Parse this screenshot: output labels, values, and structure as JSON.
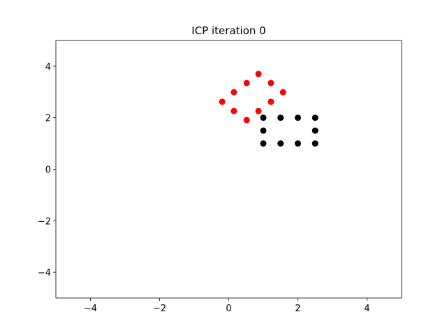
{
  "chart_data": {
    "type": "scatter",
    "title": "ICP iteration 0",
    "series": [
      {
        "color": "#000000",
        "x": [
          1,
          1.5,
          2,
          2.5,
          1,
          2.5,
          1,
          1.5,
          2,
          2.5
        ],
        "values": [
          2,
          2,
          2,
          2,
          1.5,
          1.5,
          1,
          1,
          1,
          1
        ]
      },
      {
        "color": "#ff0000",
        "x": [
          -0.19,
          0.15,
          0.52,
          0.86,
          1.22,
          1.57,
          1.22,
          0.86,
          0.52,
          0.15
        ],
        "values": [
          2.62,
          2.99,
          3.35,
          3.7,
          3.35,
          2.99,
          2.62,
          2.26,
          1.91,
          2.26
        ]
      }
    ],
    "xlim": [
      -5,
      5
    ],
    "ylim": [
      -5,
      5
    ],
    "xticks": [
      -4,
      -2,
      0,
      2,
      4
    ],
    "yticks": [
      -4,
      -2,
      0,
      2,
      4
    ]
  }
}
